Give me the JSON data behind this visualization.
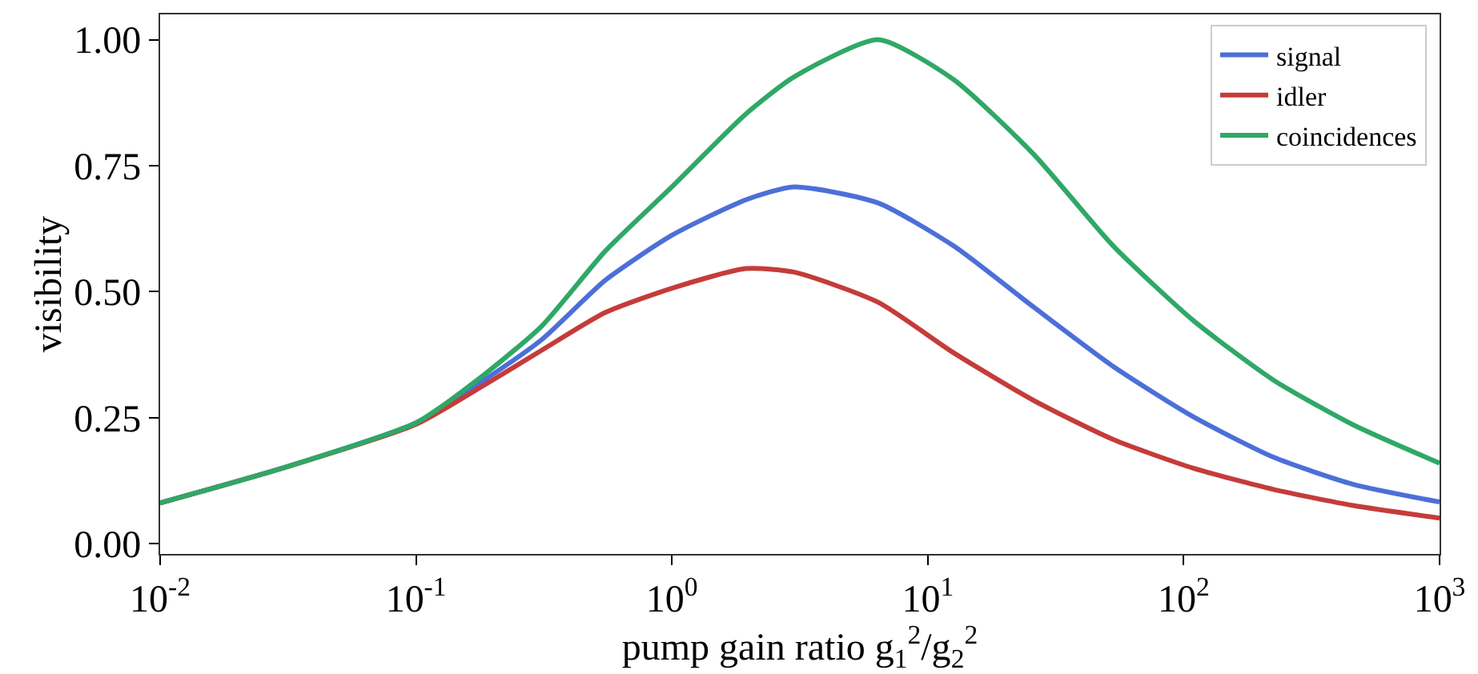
{
  "chart_data": {
    "type": "line",
    "xlabel": "pump gain ratio g$_{1}$$^{2}$/g$_{2}$$^{2}$",
    "ylabel": "visibility",
    "x": [
      0.01,
      0.03,
      0.1,
      0.185,
      0.31,
      0.55,
      1,
      1.94,
      3,
      6.4,
      12.6,
      26,
      53,
      109,
      224,
      460,
      1000
    ],
    "series": [
      {
        "name": "signal",
        "color": "#4c6fd8",
        "values": [
          0.081,
          0.15,
          0.24,
          0.325,
          0.405,
          0.523,
          0.612,
          0.682,
          0.708,
          0.676,
          0.591,
          0.469,
          0.352,
          0.252,
          0.172,
          0.118,
          0.083
        ]
      },
      {
        "name": "idler",
        "color": "#c43c3a",
        "values": [
          0.081,
          0.15,
          0.237,
          0.315,
          0.384,
          0.459,
          0.507,
          0.546,
          0.539,
          0.479,
          0.379,
          0.284,
          0.207,
          0.15,
          0.108,
          0.076,
          0.051
        ]
      },
      {
        "name": "coincidences",
        "color": "#2fa866",
        "values": [
          0.081,
          0.15,
          0.24,
          0.336,
          0.432,
          0.581,
          0.708,
          0.852,
          0.926,
          1.0,
          0.921,
          0.772,
          0.591,
          0.443,
          0.325,
          0.236,
          0.16
        ]
      }
    ],
    "log": "x",
    "xlim": [
      0.01,
      1000
    ],
    "xticks": [
      {
        "value": 0.01,
        "label": "10$^{-2}$"
      },
      {
        "value": 0.1,
        "label": "10$^{-1}$"
      },
      {
        "value": 1,
        "label": "10$^{0}$"
      },
      {
        "value": 10,
        "label": "10$^{1}$"
      },
      {
        "value": 100,
        "label": "10$^{2}$"
      },
      {
        "value": 1000,
        "label": "10$^{3}$"
      }
    ],
    "ylim": [
      -0.02,
      1.05
    ],
    "yticks": [
      {
        "value": 0,
        "label": "0.00"
      },
      {
        "value": 0.25,
        "label": "0.25"
      },
      {
        "value": 0.5,
        "label": "0.50"
      },
      {
        "value": 0.75,
        "label": "0.75"
      },
      {
        "value": 1,
        "label": "1.00"
      }
    ],
    "grid": false,
    "legend": "top right",
    "marker": "none",
    "line_style": "solid"
  }
}
